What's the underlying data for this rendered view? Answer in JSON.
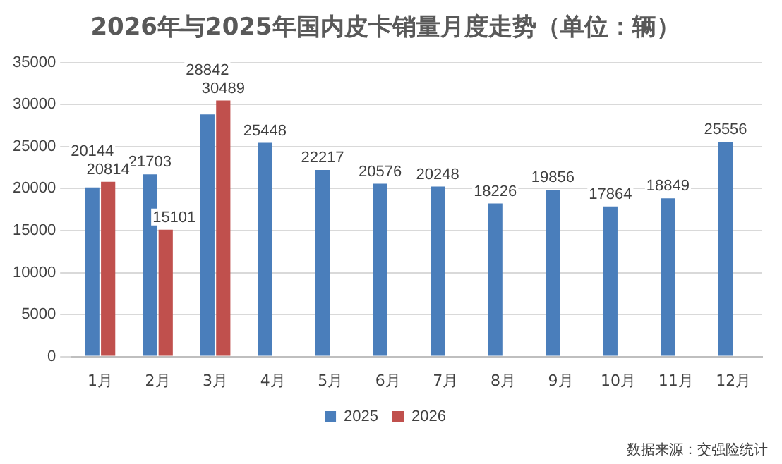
{
  "chart_data": {
    "type": "bar",
    "title": "2026年与2025年国内皮卡销量月度走势（单位：辆）",
    "categories": [
      "1月",
      "2月",
      "3月",
      "4月",
      "5月",
      "6月",
      "7月",
      "8月",
      "9月",
      "10月",
      "11月",
      "12月"
    ],
    "series": [
      {
        "name": "2025",
        "color": "#4a7ebb",
        "values": [
          20144,
          21703,
          28842,
          25448,
          22217,
          20576,
          20248,
          18226,
          19856,
          17864,
          18849,
          25556
        ]
      },
      {
        "name": "2026",
        "color": "#c0504d",
        "values": [
          20814,
          15101,
          30489,
          null,
          null,
          null,
          null,
          null,
          null,
          null,
          null,
          null
        ]
      }
    ],
    "ylim": [
      0,
      35000
    ],
    "yticks": [
      0,
      5000,
      10000,
      15000,
      20000,
      25000,
      30000,
      35000
    ],
    "grid": "y",
    "legend": "bottom",
    "data_labels": true,
    "annotations": [
      "数据来源：交强险统计"
    ]
  }
}
